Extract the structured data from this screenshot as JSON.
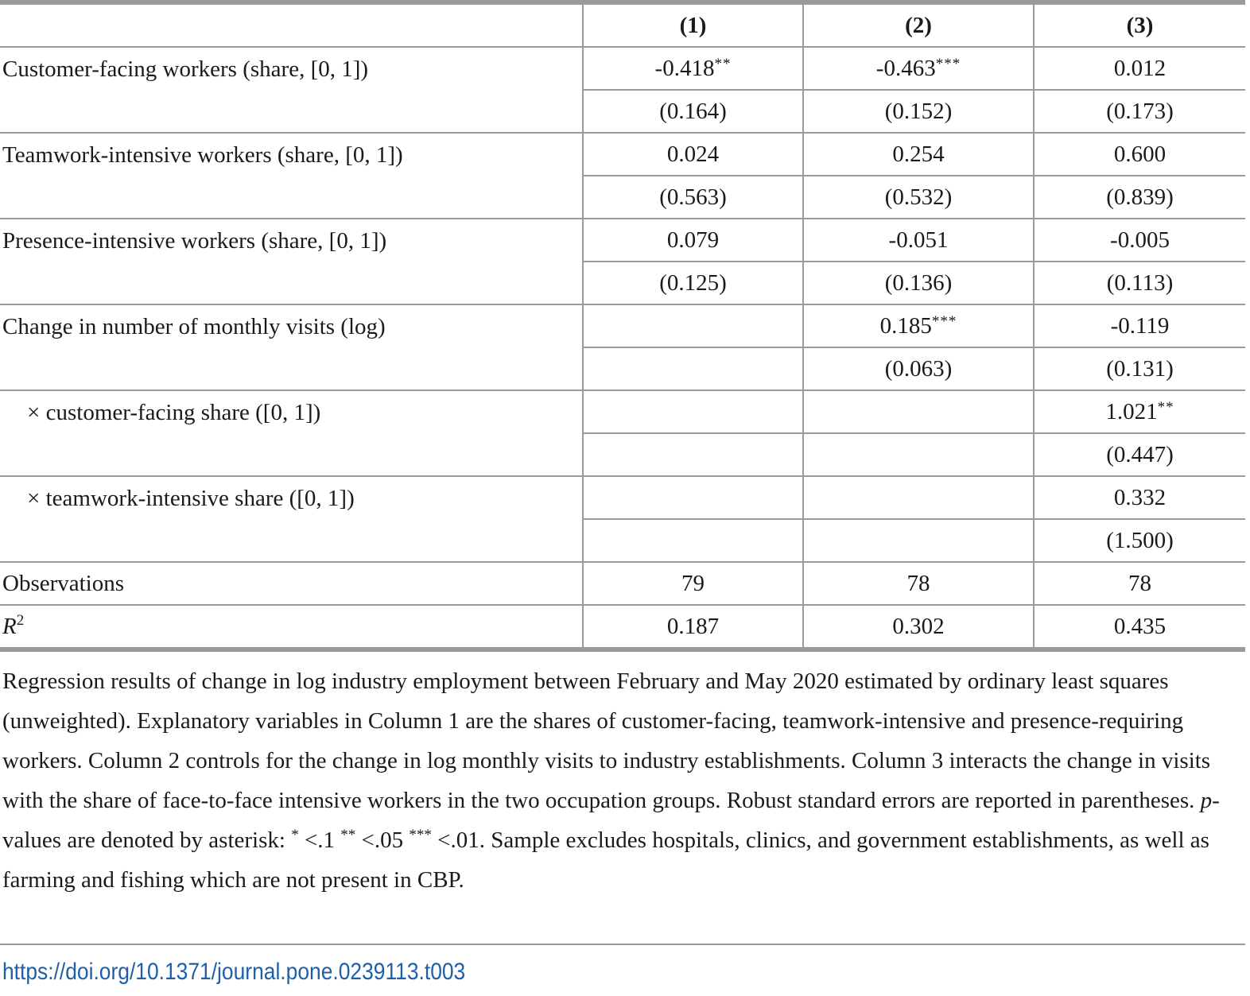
{
  "table": {
    "headers": [
      "",
      "(1)",
      "(2)",
      "(3)"
    ],
    "rows": [
      {
        "label": "Customer-facing workers (share, [0, 1])",
        "estimates": [
          {
            "v": "-0.418",
            "s": "**"
          },
          {
            "v": "-0.463",
            "s": "***"
          },
          {
            "v": "0.012",
            "s": ""
          }
        ],
        "se": [
          "(0.164)",
          "(0.152)",
          "(0.173)"
        ]
      },
      {
        "label": "Teamwork-intensive workers (share, [0, 1])",
        "estimates": [
          {
            "v": "0.024",
            "s": ""
          },
          {
            "v": "0.254",
            "s": ""
          },
          {
            "v": "0.600",
            "s": ""
          }
        ],
        "se": [
          "(0.563)",
          "(0.532)",
          "(0.839)"
        ]
      },
      {
        "label": "Presence-intensive workers (share, [0, 1])",
        "estimates": [
          {
            "v": "0.079",
            "s": ""
          },
          {
            "v": "-0.051",
            "s": ""
          },
          {
            "v": "-0.005",
            "s": ""
          }
        ],
        "se": [
          "(0.125)",
          "(0.136)",
          "(0.113)"
        ]
      },
      {
        "label": "Change in number of monthly visits (log)",
        "estimates": [
          {
            "v": "",
            "s": ""
          },
          {
            "v": "0.185",
            "s": "***"
          },
          {
            "v": "-0.119",
            "s": ""
          }
        ],
        "se": [
          "",
          "(0.063)",
          "(0.131)"
        ]
      },
      {
        "label": "× customer-facing share ([0, 1])",
        "estimates": [
          {
            "v": "",
            "s": ""
          },
          {
            "v": "",
            "s": ""
          },
          {
            "v": "1.021",
            "s": "**"
          }
        ],
        "se": [
          "",
          "",
          "(0.447)"
        ]
      },
      {
        "label": "× teamwork-intensive share ([0, 1])",
        "estimates": [
          {
            "v": "",
            "s": ""
          },
          {
            "v": "",
            "s": ""
          },
          {
            "v": "0.332",
            "s": ""
          }
        ],
        "se": [
          "",
          "",
          "(1.500)"
        ]
      }
    ],
    "observations": {
      "label": "Observations",
      "values": [
        "79",
        "78",
        "78"
      ]
    },
    "r2": {
      "symbol": "R",
      "exponent": "2",
      "values": [
        "0.187",
        "0.302",
        "0.435"
      ]
    }
  },
  "caption": {
    "part1": "Regression results of change in log industry employment between February and May 2020 estimated by ordinary least squares (unweighted). Explanatory variables in Column 1 are the shares of customer-facing, teamwork-intensive and presence-requiring workers. Column 2 controls for the change in log monthly visits to industry establishments. Column 3 interacts the change in visits with the share of face-to-face intensive workers in the two occupation groups. Robust standard errors are reported in parentheses. ",
    "p_symbol": "p",
    "part2": "-values are denoted by asterisk: ",
    "star1": "*",
    "thr1": " <.1 ",
    "star2": "**",
    "thr2": " <.05 ",
    "star3": "***",
    "thr3": " <.01. Sample excludes hospitals, clinics, and government establishments, as well as farming and fishing which are not present in CBP."
  },
  "doi": "https://doi.org/10.1371/journal.pone.0239113.t003"
}
